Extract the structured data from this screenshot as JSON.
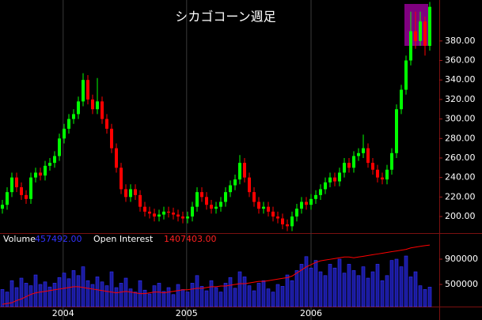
{
  "chart_data": {
    "type": "candlestick",
    "title": "シカゴコーン週足",
    "categories": [
      null,
      null,
      null,
      null,
      null,
      null,
      null,
      null,
      null,
      null,
      null,
      null,
      null,
      null,
      null,
      null,
      null,
      null,
      null,
      null,
      null,
      null,
      null,
      null,
      null,
      null,
      null,
      null,
      null,
      null,
      null,
      null,
      null,
      null,
      null,
      null,
      null,
      null,
      null,
      null,
      null,
      null,
      null,
      null,
      null,
      null,
      null,
      null,
      null,
      null,
      null,
      null,
      null,
      null,
      null,
      null,
      null,
      null,
      null,
      null,
      null,
      null,
      null,
      null,
      null,
      null,
      null,
      null,
      null,
      null,
      null,
      null,
      null,
      null,
      null,
      null,
      null,
      null,
      null,
      null,
      null,
      null,
      null,
      null,
      null,
      null,
      null,
      null,
      null,
      null,
      null
    ],
    "open": [
      208,
      212,
      225,
      240,
      230,
      222,
      218,
      240,
      245,
      242,
      252,
      255,
      262,
      280,
      290,
      300,
      305,
      318,
      340,
      320,
      310,
      318,
      300,
      290,
      270,
      250,
      228,
      220,
      228,
      222,
      210,
      205,
      203,
      200,
      202,
      205,
      204,
      202,
      200,
      198,
      200,
      210,
      225,
      220,
      212,
      208,
      210,
      215,
      225,
      232,
      238,
      255,
      240,
      225,
      215,
      208,
      210,
      205,
      200,
      198,
      192,
      190,
      200,
      208,
      215,
      212,
      218,
      222,
      228,
      235,
      240,
      236,
      245,
      255,
      250,
      262,
      265,
      270,
      255,
      248,
      240,
      238,
      248,
      265,
      310,
      330,
      360,
      390,
      380,
      400,
      375
    ],
    "high": [
      217,
      230,
      245,
      245,
      235,
      227,
      245,
      250,
      250,
      257,
      260,
      267,
      285,
      295,
      305,
      310,
      323,
      347,
      345,
      325,
      342,
      323,
      305,
      295,
      275,
      255,
      233,
      233,
      233,
      227,
      215,
      210,
      208,
      207,
      210,
      210,
      209,
      207,
      205,
      205,
      215,
      230,
      230,
      225,
      217,
      215,
      220,
      230,
      237,
      243,
      263,
      260,
      245,
      230,
      220,
      215,
      215,
      210,
      205,
      203,
      197,
      205,
      213,
      220,
      220,
      223,
      227,
      233,
      240,
      245,
      245,
      250,
      260,
      260,
      267,
      270,
      284,
      275,
      260,
      253,
      245,
      253,
      270,
      315,
      335,
      365,
      410,
      410,
      410,
      405,
      420
    ],
    "low": [
      203,
      207,
      220,
      225,
      217,
      213,
      213,
      235,
      237,
      237,
      247,
      250,
      257,
      275,
      285,
      295,
      300,
      313,
      315,
      305,
      305,
      295,
      285,
      265,
      245,
      223,
      215,
      215,
      217,
      205,
      200,
      198,
      195,
      195,
      197,
      199,
      197,
      195,
      193,
      193,
      195,
      205,
      215,
      207,
      203,
      203,
      205,
      210,
      220,
      227,
      233,
      235,
      220,
      210,
      203,
      203,
      200,
      195,
      193,
      187,
      185,
      185,
      195,
      203,
      207,
      207,
      213,
      217,
      223,
      230,
      231,
      231,
      240,
      245,
      245,
      257,
      260,
      250,
      243,
      235,
      233,
      233,
      243,
      260,
      305,
      325,
      355,
      372,
      375,
      365,
      370
    ],
    "close": [
      212,
      225,
      240,
      230,
      222,
      218,
      240,
      245,
      242,
      252,
      255,
      262,
      280,
      290,
      300,
      305,
      318,
      340,
      320,
      310,
      318,
      300,
      290,
      270,
      250,
      228,
      220,
      228,
      222,
      210,
      205,
      203,
      200,
      202,
      205,
      204,
      202,
      200,
      198,
      200,
      210,
      225,
      220,
      212,
      208,
      210,
      215,
      225,
      232,
      238,
      255,
      240,
      225,
      215,
      208,
      210,
      205,
      200,
      198,
      192,
      190,
      200,
      208,
      215,
      212,
      218,
      222,
      228,
      235,
      240,
      236,
      245,
      255,
      250,
      262,
      265,
      270,
      255,
      248,
      240,
      238,
      248,
      265,
      310,
      330,
      360,
      390,
      380,
      400,
      375,
      415
    ],
    "up_color": "#00ff00",
    "down_color": "#ff0000",
    "ylim": [
      183,
      422
    ],
    "yticks": [
      {
        "value": 200,
        "label": "200.00"
      },
      {
        "value": 220,
        "label": "220.00"
      },
      {
        "value": 240,
        "label": "240.00"
      },
      {
        "value": 260,
        "label": "260.00"
      },
      {
        "value": 280,
        "label": "280.00"
      },
      {
        "value": 300,
        "label": "300.00"
      },
      {
        "value": 320,
        "label": "320.00"
      },
      {
        "value": 340,
        "label": "340.00"
      },
      {
        "value": 360,
        "label": "360.00"
      },
      {
        "value": 380,
        "label": "380.00"
      }
    ],
    "xlim": [
      -0.5,
      92
    ],
    "xticks": [
      {
        "value": 12.8,
        "label": "2004"
      },
      {
        "value": 38.8,
        "label": "2005"
      },
      {
        "value": 65,
        "label": "2006"
      }
    ],
    "volume": {
      "name": "Volume",
      "value_label": "457492.00",
      "color": "#3333ff",
      "values": [
        420000,
        380000,
        560000,
        450000,
        600000,
        520000,
        480000,
        650000,
        500000,
        540000,
        460000,
        520000,
        610000,
        680000,
        590000,
        720000,
        640000,
        780000,
        560000,
        500000,
        620000,
        540000,
        480000,
        700000,
        450000,
        520000,
        600000,
        430000,
        380000,
        560000,
        410000,
        350000,
        480000,
        520000,
        390000,
        450000,
        340000,
        500000,
        420000,
        380000,
        520000,
        640000,
        470000,
        400000,
        560000,
        450000,
        380000,
        520000,
        610000,
        440000,
        700000,
        620000,
        480000,
        400000,
        520000,
        560000,
        430000,
        380000,
        500000,
        470000,
        650000,
        560000,
        720000,
        820000,
        940000,
        760000,
        880000,
        700000,
        640000,
        820000,
        760000,
        900000,
        680000,
        820000,
        720000,
        640000,
        780000,
        600000,
        700000,
        820000,
        560000,
        640000,
        880000,
        900000,
        780000,
        950000,
        620000,
        700000,
        480000,
        420000,
        457492
      ],
      "ylim": [
        150000,
        1175000
      ],
      "yticks": [
        500000,
        900000
      ]
    },
    "open_interest": {
      "name": "Open Interest",
      "value_label": "1407403.00",
      "color": "#ff0000",
      "values": [
        630000,
        640000,
        650000,
        680000,
        700000,
        730000,
        760000,
        780000,
        790000,
        800000,
        810000,
        820000,
        830000,
        840000,
        850000,
        860000,
        860000,
        850000,
        840000,
        830000,
        820000,
        810000,
        800000,
        790000,
        780000,
        790000,
        800000,
        790000,
        780000,
        770000,
        770000,
        780000,
        790000,
        790000,
        780000,
        790000,
        800000,
        810000,
        820000,
        820000,
        830000,
        840000,
        840000,
        850000,
        860000,
        860000,
        870000,
        870000,
        880000,
        890000,
        900000,
        900000,
        910000,
        920000,
        930000,
        930000,
        940000,
        950000,
        960000,
        970000,
        980000,
        1000000,
        1040000,
        1080000,
        1120000,
        1150000,
        1180000,
        1200000,
        1210000,
        1220000,
        1230000,
        1240000,
        1250000,
        1250000,
        1240000,
        1250000,
        1260000,
        1270000,
        1280000,
        1290000,
        1300000,
        1310000,
        1320000,
        1330000,
        1340000,
        1350000,
        1370000,
        1380000,
        1390000,
        1400000,
        1407403
      ],
      "ylim": [
        600000,
        1450000
      ]
    }
  }
}
